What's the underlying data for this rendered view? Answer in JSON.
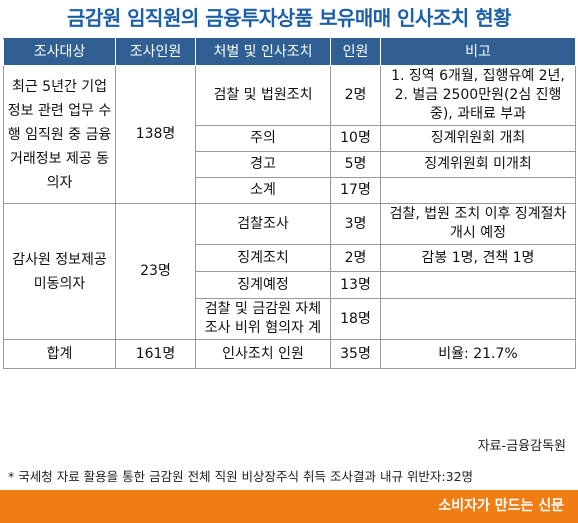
{
  "title": "금감원 임직원의 금융투자상품 보유매매 인사조치 현황",
  "table": {
    "headers": [
      "조사대상",
      "조사인원",
      "처벌 및 인사조치",
      "인원",
      "비고"
    ],
    "group1": {
      "target": "최근 5년간 기업정보 관련 업무 수행 임직원 중 금융거래정보 제공 동의자",
      "count": "138명",
      "rows": [
        {
          "action": "검찰 및 법원조치",
          "num": "2명",
          "note": "1. 징역 6개월, 집행유예 2년, 2. 벌금 2500만원(2심 진행 중), 과태료 부과"
        },
        {
          "action": "주의",
          "num": "10명",
          "note": "징계위원회 개최"
        },
        {
          "action": "경고",
          "num": "5명",
          "note": "징계위원회 미개최"
        },
        {
          "action": "소계",
          "num": "17명",
          "note": ""
        }
      ]
    },
    "group2": {
      "target": "감사원 정보제공 미동의자",
      "count": "23명",
      "rows": [
        {
          "action": "검찰조사",
          "num": "3명",
          "note": "검찰, 법원 조치 이후 징계절차 개시 예정"
        },
        {
          "action": "징계조치",
          "num": "2명",
          "note": "감봉 1명, 견책 1명"
        },
        {
          "action": "징계예정",
          "num": "13명",
          "note": ""
        },
        {
          "action": "검찰 및 금감원 자체조사 비위 혐의자 계",
          "num": "18명",
          "note": ""
        }
      ]
    },
    "total": {
      "label": "합계",
      "count": "161명",
      "action": "인사조치 인원",
      "num": "35명",
      "note": "비율: 21.7%"
    }
  },
  "source": "자료-금융감독원",
  "note": "* 국세청 자료 활용을 통한 금감원 전체 직원 비상장주식 취득 조사결과 내규 위반자:32명",
  "brand": "소비자가 만드는 신문",
  "colors": {
    "title": "#1c5fa8",
    "header_bg": "#2f5f93",
    "brand_bar": "#ef7d14"
  }
}
